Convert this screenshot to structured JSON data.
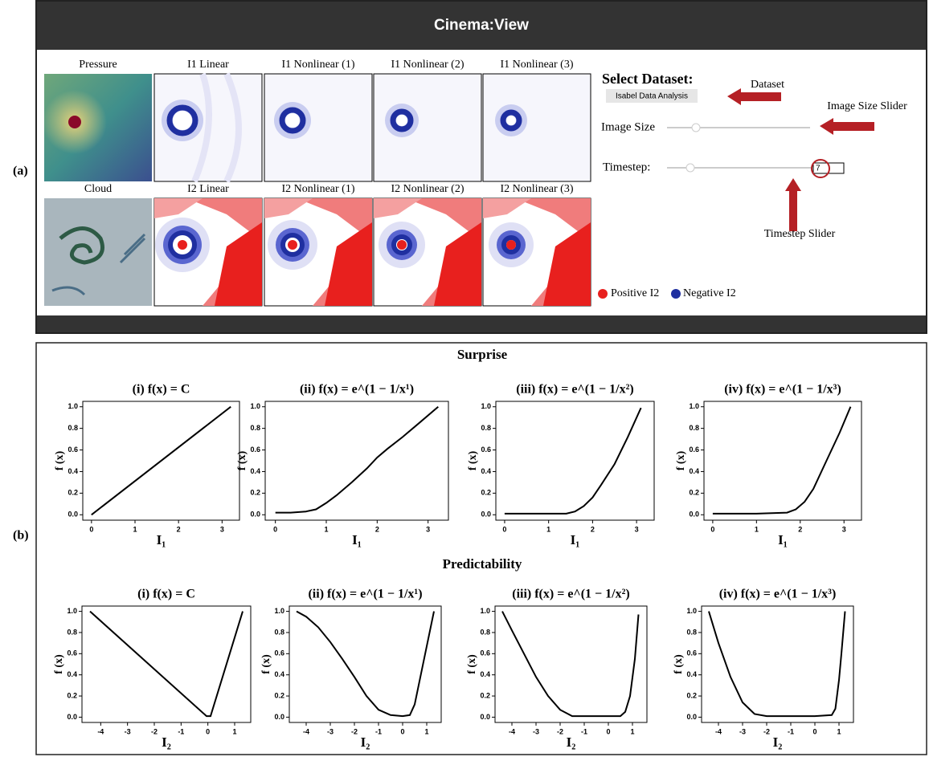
{
  "panel_a": {
    "label": "(a)",
    "app_title": "Cinema:View",
    "rows": [
      [
        "Pressure",
        "I1 Linear",
        "I1 Nonlinear (1)",
        "I1 Nonlinear (2)",
        "I1 Nonlinear (3)"
      ],
      [
        "Cloud",
        "I2 Linear",
        "I2 Nonlinear (1)",
        "I2 Nonlinear (2)",
        "I2 Nonlinear (3)"
      ]
    ],
    "controls": {
      "select_label": "Select Dataset:",
      "dataset": "Isabel Data Analysis",
      "image_size_label": "Image Size",
      "timestep_label": "Timestep:",
      "timestep_value": 7
    },
    "annotations": {
      "dataset": "Dataset",
      "image_size": "Image Size Slider",
      "timestep": "Timestep Slider"
    },
    "legend": [
      "Positive I2",
      "Negative I2"
    ]
  },
  "panel_b": {
    "label": "(b)",
    "row_titles": [
      "Surprise",
      "Predictability"
    ]
  },
  "chart_data": [
    {
      "type": "line",
      "title": "(i) f(x) = C",
      "x_label": "I₁",
      "y_label": "f (x)",
      "x": [
        0,
        3.2
      ],
      "values": [
        0,
        1
      ],
      "xlim": [
        -0.2,
        3.4
      ],
      "ylim": [
        -0.05,
        1.05
      ],
      "xticks": [
        0,
        1,
        2,
        3
      ],
      "yticks": [
        {
          "value": 0,
          "label": "0.0"
        },
        {
          "value": 0.2,
          "label": "0.2"
        },
        {
          "value": 0.4,
          "label": "0.4"
        },
        {
          "value": 0.6,
          "label": "0.6"
        },
        {
          "value": 0.8,
          "label": "0.8"
        },
        {
          "value": 1,
          "label": "1.0"
        }
      ],
      "color": "#000000"
    },
    {
      "type": "line",
      "title": "(ii) f(x) = e^(1 − 1/x¹)",
      "x_label": "I₁",
      "y_label": "f (x)",
      "x": [
        0,
        0.3,
        0.6,
        0.8,
        1.0,
        1.2,
        1.5,
        1.8,
        2.0,
        2.2,
        2.5,
        2.8,
        3.2
      ],
      "values": [
        0.02,
        0.02,
        0.03,
        0.05,
        0.11,
        0.18,
        0.3,
        0.43,
        0.53,
        0.61,
        0.72,
        0.84,
        1.0
      ],
      "xlim": [
        -0.2,
        3.4
      ],
      "ylim": [
        -0.05,
        1.05
      ],
      "xticks": [
        0,
        1,
        2,
        3
      ],
      "yticks": [
        {
          "value": 0,
          "label": "0.0"
        },
        {
          "value": 0.2,
          "label": "0.2"
        },
        {
          "value": 0.4,
          "label": "0.4"
        },
        {
          "value": 0.6,
          "label": "0.6"
        },
        {
          "value": 0.8,
          "label": "0.8"
        },
        {
          "value": 1,
          "label": "1.0"
        }
      ],
      "color": "#000000"
    },
    {
      "type": "line",
      "title": "(iii) f(x) = e^(1 − 1/x²)",
      "x_label": "I₁",
      "y_label": "f (x)",
      "x": [
        0,
        1.0,
        1.4,
        1.6,
        1.8,
        2.0,
        2.2,
        2.5,
        2.8,
        3.1
      ],
      "values": [
        0.01,
        0.01,
        0.01,
        0.03,
        0.08,
        0.16,
        0.28,
        0.47,
        0.72,
        0.99
      ],
      "xlim": [
        -0.2,
        3.4
      ],
      "ylim": [
        -0.05,
        1.05
      ],
      "xticks": [
        0,
        1,
        2,
        3
      ],
      "yticks": [
        {
          "value": 0,
          "label": "0.0"
        },
        {
          "value": 0.2,
          "label": "0.2"
        },
        {
          "value": 0.4,
          "label": "0.4"
        },
        {
          "value": 0.6,
          "label": "0.6"
        },
        {
          "value": 0.8,
          "label": "0.8"
        },
        {
          "value": 1,
          "label": "1.0"
        }
      ],
      "color": "#000000"
    },
    {
      "type": "line",
      "title": "(iv) f(x) = e^(1 − 1/x³)",
      "x_label": "I₁",
      "y_label": "f (x)",
      "x": [
        0,
        1.0,
        1.7,
        1.9,
        2.1,
        2.3,
        2.6,
        2.9,
        3.15
      ],
      "values": [
        0.01,
        0.01,
        0.02,
        0.05,
        0.12,
        0.24,
        0.5,
        0.76,
        1.0
      ],
      "xlim": [
        -0.2,
        3.4
      ],
      "ylim": [
        -0.05,
        1.05
      ],
      "xticks": [
        0,
        1,
        2,
        3
      ],
      "yticks": [
        {
          "value": 0,
          "label": "0.0"
        },
        {
          "value": 0.2,
          "label": "0.2"
        },
        {
          "value": 0.4,
          "label": "0.4"
        },
        {
          "value": 0.6,
          "label": "0.6"
        },
        {
          "value": 0.8,
          "label": "0.8"
        },
        {
          "value": 1,
          "label": "1.0"
        }
      ],
      "color": "#000000"
    },
    {
      "type": "line",
      "title": "(i) f(x) = C",
      "x_label": "I₂",
      "y_label": "f (x)",
      "x": [
        -4.4,
        -0.05,
        0.1,
        1.3
      ],
      "values": [
        1,
        0.01,
        0.01,
        1
      ],
      "xlim": [
        -4.7,
        1.6
      ],
      "ylim": [
        -0.05,
        1.05
      ],
      "xticks": [
        -4,
        -3,
        -2,
        -1,
        0,
        1
      ],
      "yticks": [
        {
          "value": 0,
          "label": "0.0"
        },
        {
          "value": 0.2,
          "label": "0.2"
        },
        {
          "value": 0.4,
          "label": "0.4"
        },
        {
          "value": 0.6,
          "label": "0.6"
        },
        {
          "value": 0.8,
          "label": "0.8"
        },
        {
          "value": 1,
          "label": "1.0"
        }
      ],
      "color": "#000000"
    },
    {
      "type": "line",
      "title": "(ii) f(x) = e^(1 − 1/x¹)",
      "x_label": "I₂",
      "y_label": "f (x)",
      "x": [
        -4.4,
        -4,
        -3.5,
        -3,
        -2.5,
        -2,
        -1.5,
        -1,
        -0.5,
        0,
        0.3,
        0.5,
        0.8,
        1.3
      ],
      "values": [
        1,
        0.95,
        0.85,
        0.71,
        0.55,
        0.38,
        0.2,
        0.07,
        0.02,
        0.01,
        0.02,
        0.12,
        0.45,
        1.0
      ],
      "xlim": [
        -4.7,
        1.6
      ],
      "ylim": [
        -0.05,
        1.05
      ],
      "xticks": [
        -4,
        -3,
        -2,
        -1,
        0,
        1
      ],
      "yticks": [
        {
          "value": 0,
          "label": "0.0"
        },
        {
          "value": 0.2,
          "label": "0.2"
        },
        {
          "value": 0.4,
          "label": "0.4"
        },
        {
          "value": 0.6,
          "label": "0.6"
        },
        {
          "value": 0.8,
          "label": "0.8"
        },
        {
          "value": 1,
          "label": "1.0"
        }
      ],
      "color": "#000000"
    },
    {
      "type": "line",
      "title": "(iii) f(x) = e^(1 − 1/x²)",
      "x_label": "I₂",
      "y_label": "f (x)",
      "x": [
        -4.4,
        -4,
        -3.5,
        -3,
        -2.5,
        -2,
        -1.5,
        -1,
        0,
        0.5,
        0.7,
        0.9,
        1.1,
        1.25
      ],
      "values": [
        1,
        0.82,
        0.6,
        0.38,
        0.2,
        0.07,
        0.01,
        0.01,
        0.01,
        0.01,
        0.05,
        0.2,
        0.55,
        0.97
      ],
      "xlim": [
        -4.7,
        1.6
      ],
      "ylim": [
        -0.05,
        1.05
      ],
      "xticks": [
        -4,
        -3,
        -2,
        -1,
        0,
        1
      ],
      "yticks": [
        {
          "value": 0,
          "label": "0.0"
        },
        {
          "value": 0.2,
          "label": "0.2"
        },
        {
          "value": 0.4,
          "label": "0.4"
        },
        {
          "value": 0.6,
          "label": "0.6"
        },
        {
          "value": 0.8,
          "label": "0.8"
        },
        {
          "value": 1,
          "label": "1.0"
        }
      ],
      "color": "#000000"
    },
    {
      "type": "line",
      "title": "(iv) f(x) = e^(1 − 1/x³)",
      "x_label": "I₂",
      "y_label": "f (x)",
      "x": [
        -4.4,
        -4,
        -3.5,
        -3,
        -2.5,
        -2,
        0,
        0.7,
        0.85,
        1.0,
        1.1,
        1.25
      ],
      "values": [
        1,
        0.7,
        0.38,
        0.14,
        0.03,
        0.01,
        0.01,
        0.02,
        0.08,
        0.35,
        0.6,
        1.0
      ],
      "xlim": [
        -4.7,
        1.6
      ],
      "ylim": [
        -0.05,
        1.05
      ],
      "xticks": [
        -4,
        -3,
        -2,
        -1,
        0,
        1
      ],
      "yticks": [
        {
          "value": 0,
          "label": "0.0"
        },
        {
          "value": 0.2,
          "label": "0.2"
        },
        {
          "value": 0.4,
          "label": "0.4"
        },
        {
          "value": 0.6,
          "label": "0.6"
        },
        {
          "value": 0.8,
          "label": "0.8"
        },
        {
          "value": 1,
          "label": "1.0"
        }
      ],
      "color": "#000000"
    }
  ]
}
